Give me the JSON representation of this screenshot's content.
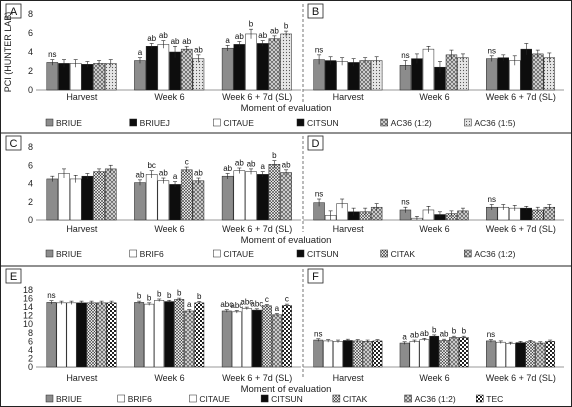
{
  "chart_data": [
    {
      "type": "bar",
      "panel_label": "A",
      "ylabel": "PCI (HUNTER LAB)",
      "ylim": [
        0,
        8
      ],
      "yticks": [
        0,
        2,
        4,
        6,
        8
      ],
      "categories": [
        "Harvest",
        "Week 6",
        "Week 6 + 7d (SL)"
      ],
      "series": [
        {
          "name": "BRIUE",
          "values": [
            2.9,
            3.1,
            4.4
          ],
          "errors": [
            0.3,
            0.3,
            0.3
          ],
          "labels": [
            "ns",
            "a",
            "a"
          ]
        },
        {
          "name": "BRIUEJ",
          "values": [
            2.8,
            4.6,
            4.8
          ],
          "errors": [
            0.4,
            0.3,
            0.3
          ],
          "labels": [
            "",
            "ab",
            "ab"
          ]
        },
        {
          "name": "CITAUE",
          "values": [
            2.8,
            4.8,
            5.9
          ],
          "errors": [
            0.4,
            0.4,
            0.5
          ],
          "labels": [
            "",
            "ab",
            "b"
          ]
        },
        {
          "name": "CITSUN",
          "values": [
            2.7,
            4.0,
            4.9
          ],
          "errors": [
            0.3,
            0.6,
            0.3
          ],
          "labels": [
            "",
            "ab",
            "ab"
          ]
        },
        {
          "name": "AC36 (1:2)",
          "values": [
            2.8,
            4.3,
            5.4
          ],
          "errors": [
            0.3,
            0.3,
            0.3
          ],
          "labels": [
            "",
            "ab",
            "ab"
          ]
        },
        {
          "name": "AC36 (1:5)",
          "values": [
            2.8,
            3.3,
            5.9
          ],
          "errors": [
            0.4,
            0.4,
            0.3
          ],
          "labels": [
            "",
            "ab",
            "b"
          ]
        }
      ]
    },
    {
      "type": "bar",
      "panel_label": "B",
      "ylim": [
        0,
        8
      ],
      "categories": [
        "Harvest",
        "Week 6",
        "Week 6 + 7d (SL)"
      ],
      "series": [
        {
          "name": "BRIUE",
          "values": [
            3.2,
            2.6,
            3.3
          ],
          "errors": [
            0.5,
            0.5,
            0.3
          ],
          "labels": [
            "ns",
            "ns",
            "ns"
          ]
        },
        {
          "name": "BRIUEJ",
          "values": [
            3.1,
            3.3,
            3.4
          ],
          "errors": [
            0.4,
            0.5,
            0.3
          ],
          "labels": [
            "",
            "",
            ""
          ]
        },
        {
          "name": "CITAUE",
          "values": [
            3.0,
            4.3,
            3.1
          ],
          "errors": [
            0.4,
            0.3,
            0.5
          ],
          "labels": [
            "",
            "",
            ""
          ]
        },
        {
          "name": "CITSUN",
          "values": [
            2.9,
            2.4,
            4.3
          ],
          "errors": [
            0.4,
            0.6,
            0.6
          ],
          "labels": [
            "",
            "",
            ""
          ]
        },
        {
          "name": "AC36 (1:2)",
          "values": [
            3.1,
            3.7,
            3.8
          ],
          "errors": [
            0.3,
            0.5,
            0.4
          ],
          "labels": [
            "",
            "",
            ""
          ]
        },
        {
          "name": "AC36 (1:5)",
          "values": [
            3.1,
            3.4,
            3.4
          ],
          "errors": [
            0.4,
            0.4,
            0.5
          ],
          "labels": [
            "",
            "",
            ""
          ]
        }
      ]
    },
    {
      "type": "bar",
      "panel_label": "C",
      "ylim": [
        0,
        8
      ],
      "yticks": [
        0,
        2,
        4,
        6,
        8
      ],
      "categories": [
        "Harvest",
        "Week 6",
        "Week 6 + 7d (SL)"
      ],
      "series": [
        {
          "name": "BRIUE",
          "values": [
            4.5,
            4.1,
            4.8
          ],
          "errors": [
            0.3,
            0.3,
            0.3
          ],
          "labels": [
            "",
            "ab",
            "ab"
          ]
        },
        {
          "name": "BRIF6",
          "values": [
            5.1,
            5.0,
            5.4
          ],
          "errors": [
            0.5,
            0.4,
            0.3
          ],
          "labels": [
            "",
            "bc",
            "ab"
          ]
        },
        {
          "name": "CITAUE",
          "values": [
            4.5,
            4.3,
            5.3
          ],
          "errors": [
            0.4,
            0.3,
            0.3
          ],
          "labels": [
            "",
            "ab",
            "ab"
          ]
        },
        {
          "name": "CITSUN",
          "values": [
            4.8,
            3.9,
            5.0
          ],
          "errors": [
            0.3,
            0.3,
            0.3
          ],
          "labels": [
            "",
            "a",
            "a"
          ]
        },
        {
          "name": "CITAK",
          "values": [
            5.3,
            5.5,
            6.1
          ],
          "errors": [
            0.3,
            0.3,
            0.4
          ],
          "labels": [
            "",
            "c",
            "b"
          ]
        },
        {
          "name": "AC36 (1:2)",
          "values": [
            5.6,
            4.3,
            5.2
          ],
          "errors": [
            0.4,
            0.3,
            0.3
          ],
          "labels": [
            "",
            "ab",
            "ab"
          ]
        }
      ]
    },
    {
      "type": "bar",
      "panel_label": "D",
      "ylim": [
        0,
        8
      ],
      "categories": [
        "Harvest",
        "Week 6",
        "Week 6 + 7d (SL)"
      ],
      "series": [
        {
          "name": "BRIUE",
          "values": [
            1.9,
            1.1,
            1.4
          ],
          "errors": [
            0.4,
            0.3,
            0.3
          ],
          "labels": [
            "ns",
            "ns",
            "ns"
          ]
        },
        {
          "name": "BRIF6",
          "values": [
            0.5,
            0.2,
            1.4
          ],
          "errors": [
            0.5,
            0.2,
            0.3
          ],
          "labels": [
            "",
            "",
            ""
          ]
        },
        {
          "name": "CITAUE",
          "values": [
            1.8,
            1.1,
            1.3
          ],
          "errors": [
            0.5,
            0.4,
            0.3
          ],
          "labels": [
            "",
            "",
            ""
          ]
        },
        {
          "name": "CITSUN",
          "values": [
            0.9,
            0.6,
            1.3
          ],
          "errors": [
            0.4,
            0.3,
            0.2
          ],
          "labels": [
            "",
            "",
            ""
          ]
        },
        {
          "name": "CITAK",
          "values": [
            0.9,
            0.7,
            1.1
          ],
          "errors": [
            0.4,
            0.3,
            0.3
          ],
          "labels": [
            "",
            "",
            ""
          ]
        },
        {
          "name": "AC36 (1:2)",
          "values": [
            1.4,
            1.0,
            1.4
          ],
          "errors": [
            0.4,
            0.3,
            0.3
          ],
          "labels": [
            "",
            "",
            ""
          ]
        }
      ]
    },
    {
      "type": "bar",
      "panel_label": "E",
      "ylim": [
        0,
        18
      ],
      "yticks": [
        0,
        2,
        4,
        6,
        8,
        10,
        12,
        14,
        16,
        18
      ],
      "categories": [
        "Harvest",
        "Week 6",
        "Week 6 + 7d (SL)"
      ],
      "series": [
        {
          "name": "BRIUE",
          "values": [
            15.1,
            15.1,
            13.1
          ],
          "errors": [
            0.4,
            0.3,
            0.3
          ],
          "labels": [
            "ns",
            "b",
            "abc"
          ]
        },
        {
          "name": "BRIF6",
          "values": [
            15.0,
            14.7,
            12.9
          ],
          "errors": [
            0.4,
            0.3,
            0.3
          ],
          "labels": [
            "",
            "b",
            "abc"
          ]
        },
        {
          "name": "CITAUE",
          "values": [
            15.0,
            15.6,
            13.7
          ],
          "errors": [
            0.4,
            0.3,
            0.3
          ],
          "labels": [
            "",
            "b",
            "abc"
          ]
        },
        {
          "name": "CITSUN",
          "values": [
            15.0,
            15.3,
            13.3
          ],
          "errors": [
            0.4,
            0.3,
            0.3
          ],
          "labels": [
            "",
            "b",
            "abc"
          ]
        },
        {
          "name": "CITAK",
          "values": [
            15.0,
            15.8,
            14.3
          ],
          "errors": [
            0.4,
            0.3,
            0.3
          ],
          "labels": [
            "",
            "b",
            "c"
          ]
        },
        {
          "name": "AC36 (1:2)",
          "values": [
            15.0,
            13.1,
            12.2
          ],
          "errors": [
            0.4,
            0.3,
            0.3
          ],
          "labels": [
            "",
            "a",
            "a"
          ]
        },
        {
          "name": "TEC",
          "values": [
            15.0,
            15.0,
            14.4
          ],
          "errors": [
            0.4,
            0.3,
            0.3
          ],
          "labels": [
            "",
            "b",
            "c"
          ]
        }
      ]
    },
    {
      "type": "bar",
      "panel_label": "F",
      "ylim": [
        0,
        18
      ],
      "categories": [
        "Harvest",
        "Week 6",
        "Week 6 + 7d (SL)"
      ],
      "series": [
        {
          "name": "BRIUE",
          "values": [
            6.3,
            5.6,
            6.1
          ],
          "errors": [
            0.3,
            0.3,
            0.3
          ],
          "labels": [
            "ns",
            "a",
            "ns"
          ]
        },
        {
          "name": "BRIF6",
          "values": [
            6.1,
            6.0,
            5.8
          ],
          "errors": [
            0.3,
            0.3,
            0.3
          ],
          "labels": [
            "",
            "ab",
            ""
          ]
        },
        {
          "name": "CITAUE",
          "values": [
            6.0,
            6.4,
            5.5
          ],
          "errors": [
            0.3,
            0.3,
            0.3
          ],
          "labels": [
            "",
            "ab",
            ""
          ]
        },
        {
          "name": "CITSUN",
          "values": [
            6.2,
            7.2,
            5.7
          ],
          "errors": [
            0.3,
            0.3,
            0.3
          ],
          "labels": [
            "",
            "b",
            ""
          ]
        },
        {
          "name": "CITAK",
          "values": [
            6.1,
            6.2,
            5.9
          ],
          "errors": [
            0.3,
            0.3,
            0.3
          ],
          "labels": [
            "",
            "ab",
            ""
          ]
        },
        {
          "name": "AC36 (1:2)",
          "values": [
            6.0,
            6.9,
            5.6
          ],
          "errors": [
            0.3,
            0.3,
            0.3
          ],
          "labels": [
            "",
            "b",
            ""
          ]
        },
        {
          "name": "TEC",
          "values": [
            6.1,
            6.9,
            6.0
          ],
          "errors": [
            0.3,
            0.3,
            0.3
          ],
          "labels": [
            "",
            "b",
            ""
          ]
        }
      ]
    }
  ],
  "rows": [
    {
      "xlabel": "Moment of evaluation",
      "legend": [
        "BRIUE",
        "BRIUEJ",
        "CITAUE",
        "CITSUN",
        "AC36 (1:2)",
        "AC36 (1:5)"
      ]
    },
    {
      "xlabel": "Moment of evaluation",
      "legend": [
        "BRIUE",
        "BRIF6",
        "CITAUE",
        "CITSUN",
        "CITAK",
        "AC36 (1:2)"
      ]
    },
    {
      "xlabel": "Moment of evaluation",
      "legend": [
        "BRIUE",
        "BRIF6",
        "CITAUE",
        "CITSUN",
        "CITAK",
        "AC36 (1:2)",
        "TEC"
      ]
    }
  ],
  "patterns": {
    "BRIUE": "gray",
    "BRIUEJ": "black",
    "CITAUE": "white",
    "CITSUN": "black",
    "BRIF6": "white",
    "CITAK": "crosshatch",
    "AC36 (1:2)": "diamond",
    "AC36 (1:5)": "dots",
    "TEC": "checker"
  },
  "colors": {
    "gray_bar": "#8c8c8c",
    "black_bar": "#0d0d0d",
    "border": "#222222"
  }
}
